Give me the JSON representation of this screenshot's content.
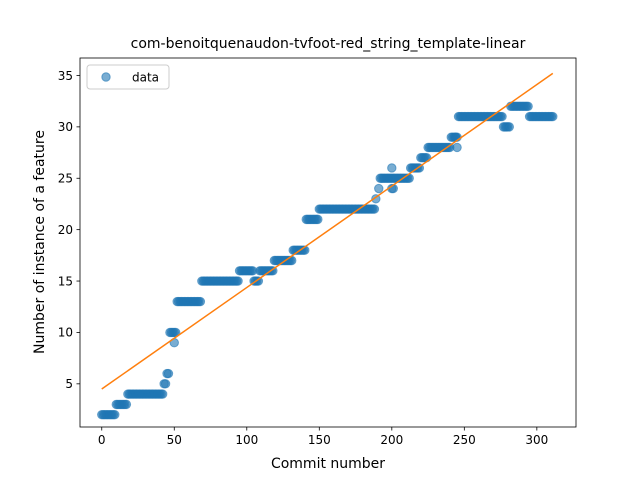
{
  "chart_data": {
    "type": "scatter",
    "title": "com-benoitquenaudon-tvfoot-red_string_template-linear",
    "xlabel": "Commit number",
    "ylabel": "Number of instance of a feature",
    "xlim": [
      -15,
      327
    ],
    "ylim": [
      0.8,
      36.7
    ],
    "xticks": [
      0,
      50,
      100,
      150,
      200,
      250,
      300
    ],
    "yticks": [
      5,
      10,
      15,
      20,
      25,
      30,
      35
    ],
    "grid": false,
    "legend": {
      "placement": "top-left",
      "entries": [
        "data"
      ]
    },
    "colors": {
      "data": "#1f77b4",
      "fit": "#ff7f0e"
    },
    "series": [
      {
        "name": "data",
        "kind": "scatter",
        "segments": [
          {
            "x_start": 0,
            "x_end": 9,
            "y": 2
          },
          {
            "x_start": 10,
            "x_end": 17,
            "y": 3
          },
          {
            "x_start": 18,
            "x_end": 42,
            "y": 4
          },
          {
            "x_start": 43,
            "x_end": 44,
            "y": 5
          },
          {
            "x_start": 45,
            "x_end": 46,
            "y": 6
          },
          {
            "x_start": 47,
            "x_end": 51,
            "y": 10
          },
          {
            "x_start": 52,
            "x_end": 68,
            "y": 13
          },
          {
            "x_start": 69,
            "x_end": 94,
            "y": 15
          },
          {
            "x_start": 95,
            "x_end": 104,
            "y": 16
          },
          {
            "x_start": 105,
            "x_end": 108,
            "y": 15
          },
          {
            "x_start": 109,
            "x_end": 118,
            "y": 16
          },
          {
            "x_start": 119,
            "x_end": 131,
            "y": 17
          },
          {
            "x_start": 132,
            "x_end": 140,
            "y": 18
          },
          {
            "x_start": 141,
            "x_end": 149,
            "y": 21
          },
          {
            "x_start": 150,
            "x_end": 188,
            "y": 22
          },
          {
            "x_start": 192,
            "x_end": 203,
            "y": 25
          },
          {
            "x_start": 204,
            "x_end": 212,
            "y": 25
          },
          {
            "x_start": 213,
            "x_end": 219,
            "y": 26
          },
          {
            "x_start": 220,
            "x_end": 224,
            "y": 27
          },
          {
            "x_start": 225,
            "x_end": 240,
            "y": 28
          },
          {
            "x_start": 241,
            "x_end": 245,
            "y": 29
          },
          {
            "x_start": 246,
            "x_end": 276,
            "y": 31
          },
          {
            "x_start": 277,
            "x_end": 281,
            "y": 30
          },
          {
            "x_start": 282,
            "x_end": 294,
            "y": 32
          },
          {
            "x_start": 295,
            "x_end": 311,
            "y": 31
          }
        ],
        "points": [
          {
            "x": 50,
            "y": 9
          },
          {
            "x": 189,
            "y": 23
          },
          {
            "x": 191,
            "y": 24
          },
          {
            "x": 200,
            "y": 26
          },
          {
            "x": 200,
            "y": 24
          },
          {
            "x": 201,
            "y": 24
          },
          {
            "x": 245,
            "y": 28
          },
          {
            "x": 244,
            "y": 29
          }
        ]
      },
      {
        "name": "",
        "kind": "line",
        "x": [
          0,
          311
        ],
        "y": [
          4.5,
          35.2
        ]
      }
    ]
  }
}
